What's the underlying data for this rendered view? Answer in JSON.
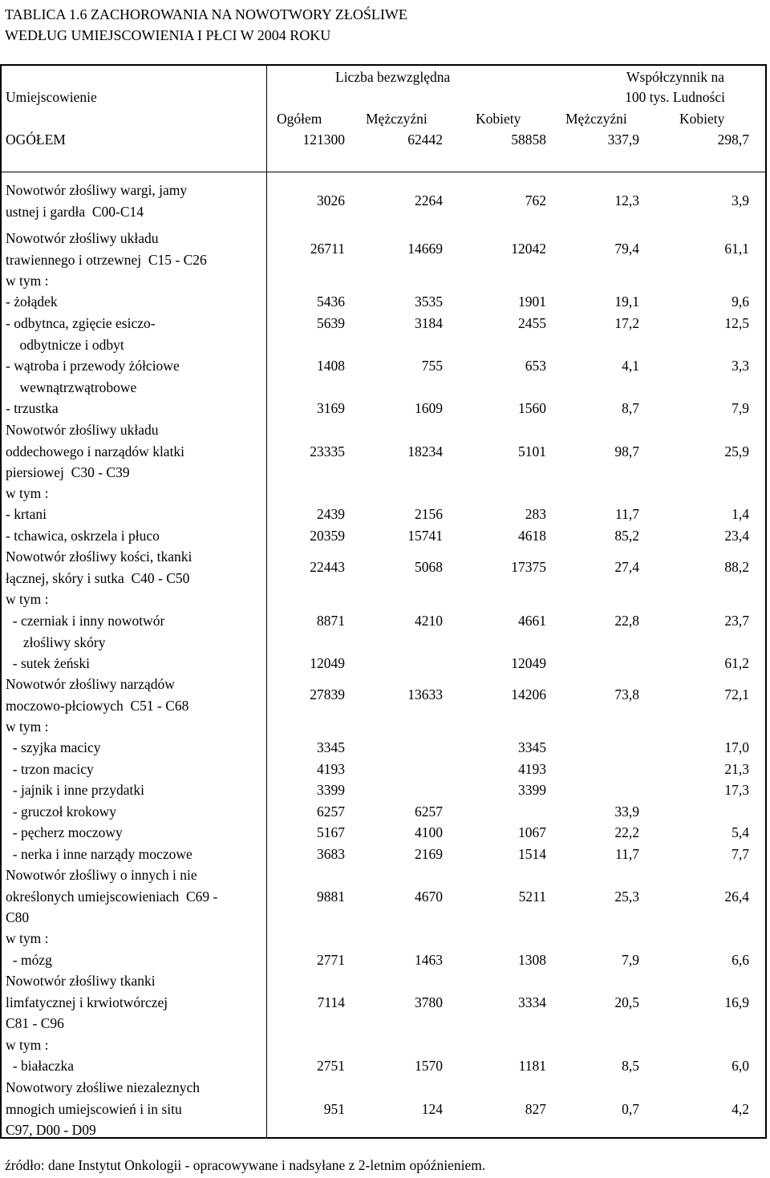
{
  "title_line1": "TABLICA 1.6  ZACHOROWANIA NA NOWOTWORY ZŁOŚLIWE",
  "title_line2": "WEDŁUG UMIEJSCOWIENIA I PŁCI W 2004 ROKU",
  "header": {
    "location": "Umiejscowienie",
    "absolute": "Liczba bezwzględna",
    "coef_line1": "Współczynnik na",
    "coef_line2": "100 tys. Ludności",
    "col_total": "Ogółem",
    "col_men": "Mężczyźni",
    "col_women": "Kobiety",
    "col_men_coef": "Mężczyźni",
    "col_women_coef": "Kobiety"
  },
  "total_row": {
    "label": "OGÓŁEM",
    "v": [
      "121300",
      "62442",
      "58858",
      "337,9",
      "298,7"
    ]
  },
  "rows": [
    {
      "lines": [
        "Nowotwór złośliwy wargi, jamy",
        "ustnej i gardła  C00-C14"
      ],
      "v": [
        "3026",
        "2264",
        "762",
        "12,3",
        "3,9"
      ]
    },
    {
      "lines": [
        "Nowotwór złośliwy układu",
        "trawiennego i otrzewnej  C15 - C26"
      ],
      "v": [
        "26711",
        "14669",
        "12042",
        "79,4",
        "61,1"
      ]
    },
    {
      "lines": [
        "w tym :"
      ],
      "v": [
        "",
        "",
        "",
        "",
        ""
      ]
    },
    {
      "lines": [
        "- żołądek"
      ],
      "v": [
        "5436",
        "3535",
        "1901",
        "19,1",
        "9,6"
      ]
    },
    {
      "lines": [
        "- odbytnca, zgięcie esiczo-",
        "    odbytnicze i odbyt"
      ],
      "v": [
        "5639",
        "3184",
        "2455",
        "17,2",
        "12,5"
      ]
    },
    {
      "lines": [
        "- wątroba i przewody żółciowe",
        "    wewnątrzwątrobowe"
      ],
      "v": [
        "1408",
        "755",
        "653",
        "4,1",
        "3,3"
      ]
    },
    {
      "lines": [
        "- trzustka"
      ],
      "v": [
        "3169",
        "1609",
        "1560",
        "8,7",
        "7,9"
      ]
    },
    {
      "lines": [
        "Nowotwór złośliwy układu",
        "oddechowego i narządów klatki",
        "piersiowej  C30 - C39"
      ],
      "v": [
        "23335",
        "18234",
        "5101",
        "98,7",
        "25,9"
      ]
    },
    {
      "lines": [
        "w tym :"
      ],
      "v": [
        "",
        "",
        "",
        "",
        ""
      ]
    },
    {
      "lines": [
        "- krtani"
      ],
      "v": [
        "2439",
        "2156",
        "283",
        "11,7",
        "1,4"
      ]
    },
    {
      "lines": [
        "- tchawica, oskrzela i płuco"
      ],
      "v": [
        "20359",
        "15741",
        "4618",
        "85,2",
        "23,4"
      ]
    },
    {
      "lines": [
        "Nowotwór złośliwy kości, tkanki",
        "łącznej, skóry i sutka  C40 - C50"
      ],
      "v": [
        "22443",
        "5068",
        "17375",
        "27,4",
        "88,2"
      ]
    },
    {
      "lines": [
        "w tym :"
      ],
      "v": [
        "",
        "",
        "",
        "",
        ""
      ]
    },
    {
      "lines": [
        "  - czerniak i inny nowotwór",
        "     złośliwy skóry"
      ],
      "v": [
        "8871",
        "4210",
        "4661",
        "22,8",
        "23,7"
      ]
    },
    {
      "lines": [
        "  - sutek żeński"
      ],
      "v": [
        "12049",
        "",
        "12049",
        "",
        "61,2"
      ]
    },
    {
      "lines": [
        "Nowotwór złośliwy narządów",
        "moczowo-płciowych  C51 - C68"
      ],
      "v": [
        "27839",
        "13633",
        "14206",
        "73,8",
        "72,1"
      ]
    },
    {
      "lines": [
        "w tym :"
      ],
      "v": [
        "",
        "",
        "",
        "",
        ""
      ]
    },
    {
      "lines": [
        "  - szyjka macicy"
      ],
      "v": [
        "3345",
        "",
        "3345",
        "",
        "17,0"
      ]
    },
    {
      "lines": [
        "  - trzon macicy"
      ],
      "v": [
        "4193",
        "",
        "4193",
        "",
        "21,3"
      ]
    },
    {
      "lines": [
        "  - jajnik i inne przydatki"
      ],
      "v": [
        "3399",
        "",
        "3399",
        "",
        "17,3"
      ]
    },
    {
      "lines": [
        "  - gruczoł krokowy"
      ],
      "v": [
        "6257",
        "6257",
        "",
        "33,9",
        ""
      ]
    },
    {
      "lines": [
        "  - pęcherz moczowy"
      ],
      "v": [
        "5167",
        "4100",
        "1067",
        "22,2",
        "5,4"
      ]
    },
    {
      "lines": [
        "  - nerka i inne narządy moczowe"
      ],
      "v": [
        "3683",
        "2169",
        "1514",
        "11,7",
        "7,7"
      ]
    },
    {
      "lines": [
        "Nowotwór złośliwy o innych i nie",
        "określonych umiejscowieniach  C69 -",
        "C80"
      ],
      "v": [
        "9881",
        "4670",
        "5211",
        "25,3",
        "26,4"
      ]
    },
    {
      "lines": [
        "w tym :"
      ],
      "v": [
        "",
        "",
        "",
        "",
        ""
      ]
    },
    {
      "lines": [
        "  - mózg"
      ],
      "v": [
        "2771",
        "1463",
        "1308",
        "7,9",
        "6,6"
      ]
    },
    {
      "lines": [
        "Nowotwór złośliwy tkanki",
        "limfatycznej i krwiotwórczej",
        "C81 - C96"
      ],
      "v": [
        "7114",
        "3780",
        "3334",
        "20,5",
        "16,9"
      ]
    },
    {
      "lines": [
        "w tym :"
      ],
      "v": [
        "",
        "",
        "",
        "",
        ""
      ]
    },
    {
      "lines": [
        "  - białaczka"
      ],
      "v": [
        "2751",
        "1570",
        "1181",
        "8,5",
        "6,0"
      ]
    },
    {
      "lines": [
        "Nowotwory złośliwe niezaleznych",
        "mnogich umiejscowień i in situ",
        "C97, D00 - D09"
      ],
      "v": [
        "951",
        "124",
        "827",
        "0,7",
        "4,2"
      ]
    }
  ],
  "source": "źródło: dane Instytut Onkologii - opracowywane i nadsyłane z 2-letnim opóźnieniem."
}
